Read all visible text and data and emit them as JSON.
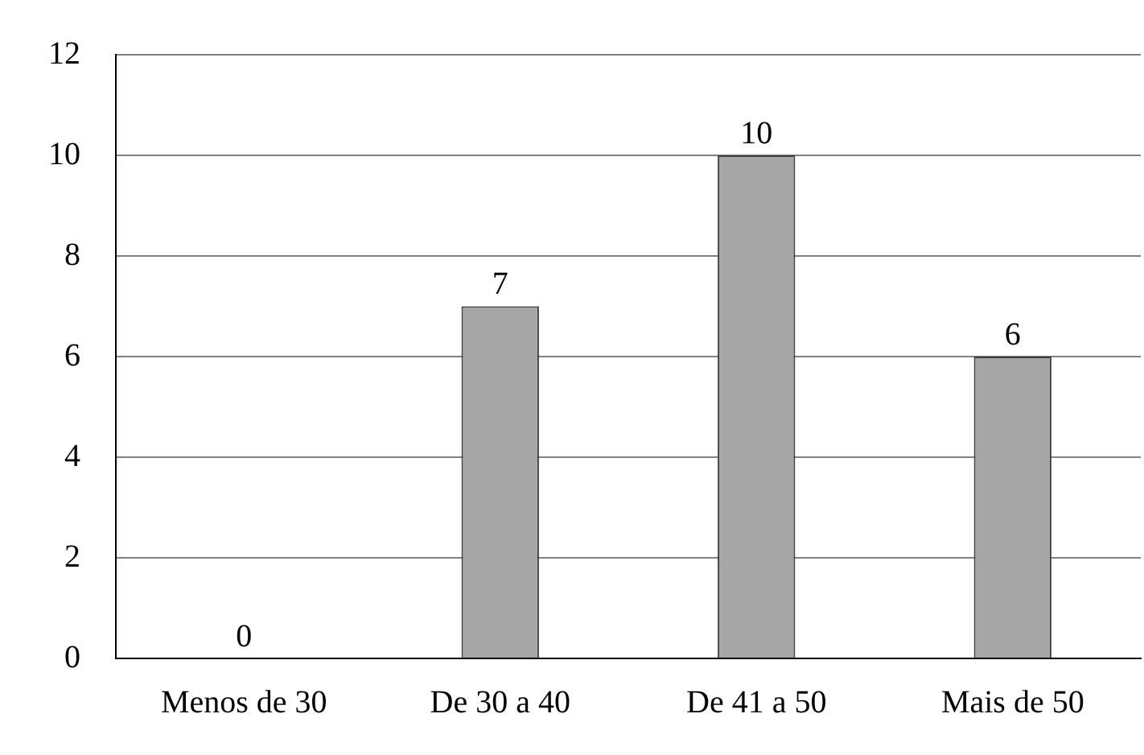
{
  "chart_data": {
    "type": "bar",
    "categories": [
      "Menos de 30",
      "De 30 a 40",
      "De 41 a 50",
      "Mais de 50"
    ],
    "values": [
      0,
      7,
      10,
      6
    ],
    "color": "#a6a6a6",
    "ylim": [
      0,
      12
    ],
    "yticks": [
      0,
      2,
      4,
      6,
      8,
      10,
      12
    ],
    "grid": "y",
    "data_labels": true,
    "legend": false
  }
}
